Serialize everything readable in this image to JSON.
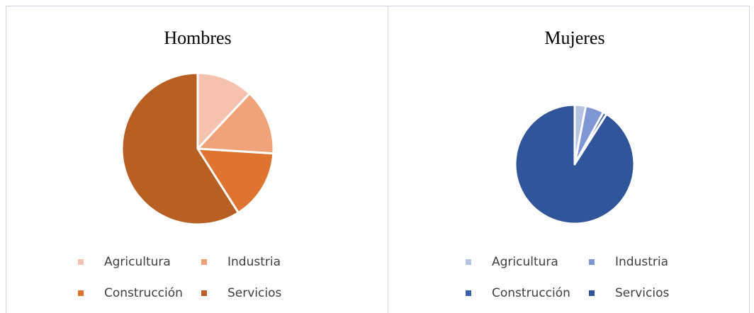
{
  "chart_data": [
    {
      "type": "pie",
      "title": "Hombres",
      "categories": [
        "Agricultura",
        "Industria",
        "Construcción",
        "Servicios"
      ],
      "values": [
        12,
        14,
        15,
        59
      ],
      "colors": [
        "#f4c2af",
        "#f0a278",
        "#df7430",
        "#b85f23"
      ]
    },
    {
      "type": "pie",
      "title": "Mujeres",
      "categories": [
        "Agricultura",
        "Industria",
        "Construcción",
        "Servicios"
      ],
      "values": [
        3,
        5,
        1,
        91
      ],
      "colors": [
        "#b4c3e4",
        "#7f97d5",
        "#3a60b2",
        "#30559a"
      ]
    }
  ]
}
